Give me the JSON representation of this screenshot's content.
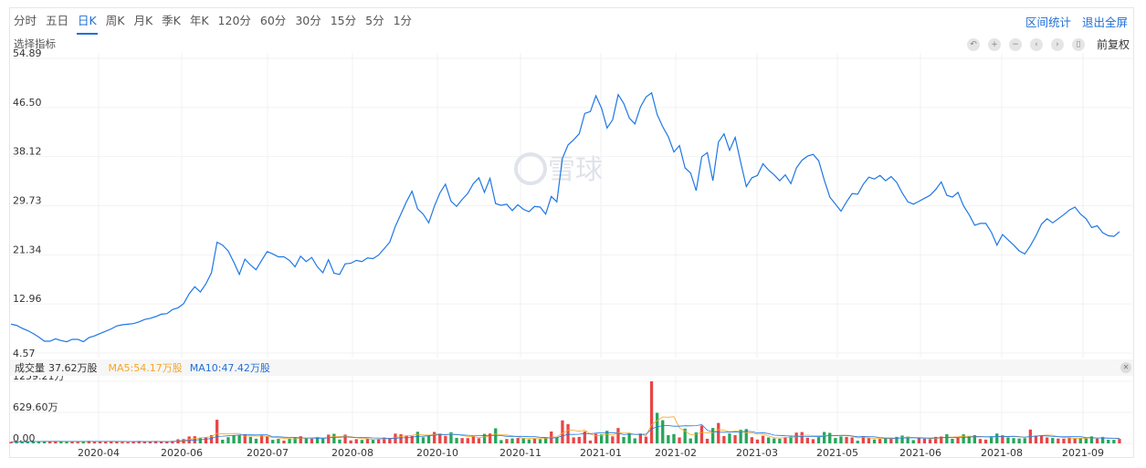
{
  "tabs": [
    "分时",
    "五日",
    "日K",
    "周K",
    "月K",
    "季K",
    "年K",
    "120分",
    "60分",
    "30分",
    "15分",
    "5分",
    "1分"
  ],
  "active_tab": "日K",
  "links": {
    "stats": "区间统计",
    "fullscreen": "退出全屏"
  },
  "indicator_label": "选择指标",
  "fuquan_label": "前复权",
  "watermark": "雪球",
  "volume_header": {
    "label": "成交量",
    "value": "37.62万股",
    "ma5": "MA5:54.17万股",
    "ma10": "MA10:47.42万股"
  },
  "colors": {
    "price_line": "#1f77e5",
    "ma5": "#f5a623",
    "ma10": "#1f77e5",
    "up": "#e84646",
    "down": "#26a65b",
    "active_tab": "#1f6fd6"
  },
  "chart_data": [
    {
      "type": "line",
      "title": "",
      "y_ticks": [
        "54.89",
        "46.50",
        "38.12",
        "29.73",
        "21.34",
        "12.96",
        "4.57"
      ],
      "ylim": [
        4.57,
        54.89
      ],
      "x_ticks": [
        "2020-04",
        "2020-06",
        "2020-07",
        "2020-08",
        "2020-10",
        "2020-11",
        "2021-01",
        "2021-02",
        "2021-03",
        "2021-05",
        "2021-06",
        "2021-08",
        "2021-09"
      ],
      "series": [
        {
          "values": [
            9.5,
            9.3,
            8.8,
            8.4,
            7.9,
            7.3,
            6.6,
            6.6,
            7.0,
            6.7,
            6.5,
            6.9,
            6.9,
            6.5,
            7.2,
            7.5,
            7.9,
            8.3,
            8.7,
            9.2,
            9.4,
            9.5,
            9.6,
            9.9,
            10.3,
            10.5,
            10.8,
            11.2,
            11.3,
            12.0,
            12.3,
            13.0,
            14.7,
            15.9,
            15.0,
            16.4,
            18.3,
            23.5,
            23.0,
            22.0,
            20.1,
            18.0,
            20.6,
            19.6,
            18.8,
            20.4,
            21.9,
            21.5,
            21.0,
            21.0,
            20.4,
            19.3,
            21.1,
            20.2,
            20.9,
            19.3,
            18.3,
            20.5,
            18.2,
            18.0,
            19.8,
            19.9,
            20.4,
            20.2,
            20.8,
            20.7,
            21.3,
            22.4,
            23.5,
            26.2,
            28.3,
            30.4,
            32.2,
            29.2,
            28.3,
            26.8,
            29.6,
            31.9,
            33.4,
            30.5,
            29.6,
            30.8,
            31.8,
            33.5,
            34.5,
            32.0,
            34.4,
            30.1,
            29.8,
            30.0,
            28.9,
            29.9,
            29.1,
            28.7,
            29.6,
            29.5,
            28.3,
            31.3,
            30.4,
            37.8,
            40.1,
            41.0,
            42.0,
            45.5,
            45.8,
            48.5,
            46.4,
            43.0,
            44.4,
            48.7,
            47.2,
            44.7,
            43.7,
            46.6,
            48.3,
            49.0,
            45.3,
            43.2,
            41.5,
            38.9,
            40.0,
            36.2,
            35.3,
            32.3,
            38.1,
            38.8,
            34.0,
            40.6,
            42.0,
            39.2,
            41.4,
            37.1,
            33.0,
            34.5,
            34.9,
            36.9,
            35.8,
            35.0,
            34.0,
            35.0,
            33.5,
            36.2,
            37.5,
            38.2,
            38.5,
            37.4,
            34.1,
            31.2,
            30.0,
            28.8,
            30.4,
            31.8,
            31.7,
            33.4,
            34.6,
            34.3,
            34.9,
            34.0,
            34.7,
            33.7,
            31.9,
            30.4,
            30.0,
            30.5,
            31.0,
            31.5,
            32.5,
            33.8,
            31.5,
            31.2,
            32.0,
            29.7,
            28.2,
            26.4,
            26.7,
            26.7,
            25.2,
            23.0,
            24.8,
            23.9,
            23.0,
            22.0,
            21.5,
            22.9,
            24.6,
            26.6,
            27.5,
            26.8,
            27.5,
            28.2,
            29.0,
            29.5,
            28.3,
            27.5,
            26.0,
            26.3,
            25.1,
            24.6,
            24.5,
            25.3
          ]
        }
      ]
    },
    {
      "type": "bar",
      "title": "",
      "y_ticks": [
        "1259.21万",
        "629.60万",
        "0.00"
      ],
      "ylim": [
        0,
        1259.21
      ],
      "x_ticks": [
        "2020-04",
        "2020-06",
        "2020-07",
        "2020-08",
        "2020-10",
        "2020-11",
        "2021-01",
        "2021-02",
        "2021-03",
        "2021-05",
        "2021-06",
        "2021-08",
        "2021-09"
      ]
    }
  ]
}
